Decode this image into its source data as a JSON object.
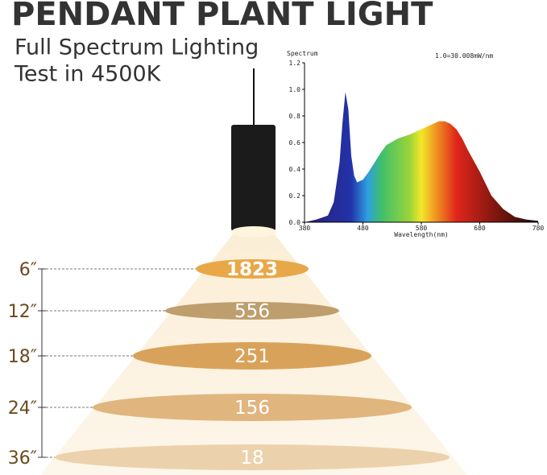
{
  "header": {
    "title": "PENDANT PLANT LIGHT",
    "subtitle_lines": [
      "Full Spectrum Lighting",
      "Test in 4500K"
    ]
  },
  "chart_data": {
    "type": "area",
    "y_label": "Spectrum",
    "annotation": "1.0=30.008mW/nm",
    "x_label": "Wavelength(nm)",
    "x": [
      380,
      400,
      420,
      430,
      440,
      445,
      450,
      455,
      460,
      465,
      470,
      480,
      490,
      500,
      510,
      520,
      540,
      560,
      580,
      600,
      610,
      620,
      630,
      640,
      650,
      660,
      680,
      700,
      720,
      740,
      760,
      780
    ],
    "values": [
      0,
      0.02,
      0.05,
      0.15,
      0.45,
      0.75,
      0.98,
      0.85,
      0.5,
      0.35,
      0.3,
      0.32,
      0.38,
      0.45,
      0.52,
      0.58,
      0.63,
      0.66,
      0.7,
      0.74,
      0.76,
      0.76,
      0.74,
      0.7,
      0.63,
      0.54,
      0.38,
      0.2,
      0.1,
      0.04,
      0.02,
      0.01
    ],
    "xlim": [
      380,
      780
    ],
    "xticks": [
      380,
      480,
      580,
      680,
      780
    ],
    "ylim": [
      0,
      1.2
    ],
    "yticks": [
      {
        "value": 0,
        "label": "0.0"
      },
      0.2,
      0.4,
      0.6,
      0.8,
      {
        "value": 1,
        "label": "1.0"
      },
      1.2
    ]
  },
  "diagram": {
    "levels": [
      {
        "distance": "6″",
        "ppfd": 1823
      },
      {
        "distance": "12″",
        "ppfd": 556
      },
      {
        "distance": "18″",
        "ppfd": 251
      },
      {
        "distance": "24″",
        "ppfd": 156
      },
      {
        "distance": "36″",
        "ppfd": 18
      }
    ]
  }
}
